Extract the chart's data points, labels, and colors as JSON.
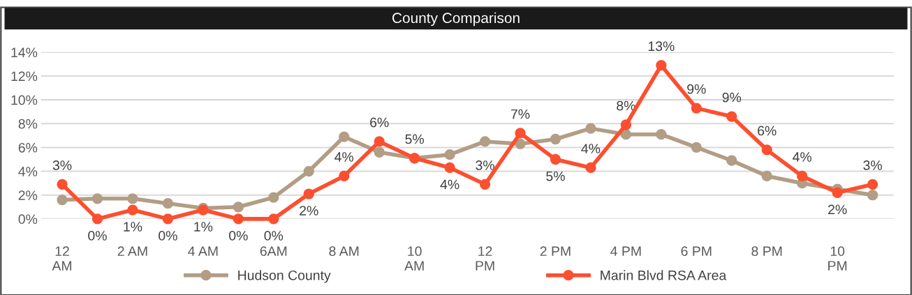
{
  "chart_data": {
    "type": "line",
    "title": "County Comparison",
    "categories": [
      "12\nAM",
      null,
      "2 AM",
      null,
      "4 AM",
      null,
      "6AM",
      null,
      "8 AM",
      null,
      "10\nAM",
      null,
      "12\nPM",
      null,
      "2 PM",
      null,
      "4 PM",
      null,
      "6 PM",
      null,
      "8 PM",
      null,
      "10\nPM",
      null
    ],
    "series": [
      {
        "name": "Hudson County",
        "color": "#b29d85",
        "values": [
          1.6,
          1.7,
          1.7,
          1.3,
          0.9,
          1.0,
          1.8,
          4.0,
          6.9,
          5.6,
          5.1,
          5.4,
          6.5,
          6.3,
          6.7,
          7.6,
          7.1,
          7.1,
          6.0,
          4.9,
          3.6,
          3.0,
          2.5,
          2.0
        ]
      },
      {
        "name": "Marin Blvd RSA Area",
        "color": "#fc4f30",
        "values": [
          2.9,
          0,
          0.75,
          0,
          0.75,
          0,
          0,
          2.1,
          3.6,
          6.5,
          5.1,
          4.3,
          2.9,
          7.2,
          5.0,
          4.3,
          7.9,
          12.9,
          9.3,
          8.6,
          5.8,
          3.6,
          2.2,
          2.9
        ],
        "value_labels": [
          "3%",
          "0%",
          "1%",
          "0%",
          "1%",
          "0%",
          "0%",
          "2%",
          "4%",
          "6%",
          "5%",
          "4%",
          "3%",
          "7%",
          "5%",
          "4%",
          "8%",
          "13%",
          "9%",
          "9%",
          "6%",
          "4%",
          "2%",
          "3%"
        ]
      }
    ],
    "ylim": [
      0,
      14
    ],
    "yticks": [
      {
        "value": 0,
        "label": "0%"
      },
      {
        "value": 2,
        "label": "2%"
      },
      {
        "value": 4,
        "label": "4%"
      },
      {
        "value": 6,
        "label": "6%"
      },
      {
        "value": 8,
        "label": "8%"
      },
      {
        "value": 10,
        "label": "10%"
      },
      {
        "value": 12,
        "label": "12%"
      },
      {
        "value": 14,
        "label": "14%"
      }
    ],
    "grid": "y",
    "legend": "bottom",
    "marker": "circle",
    "line_style": "solid"
  }
}
